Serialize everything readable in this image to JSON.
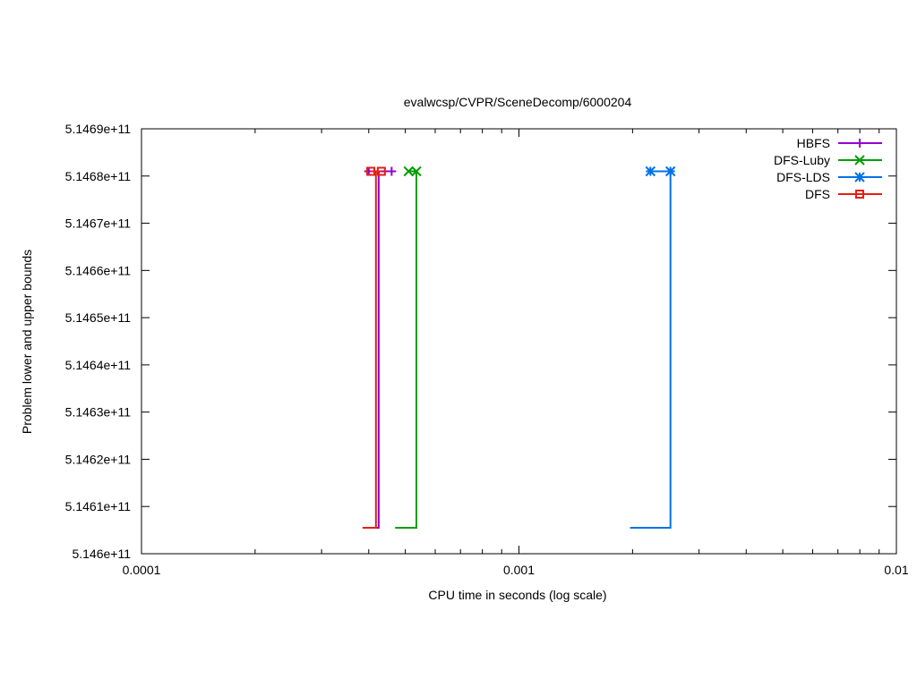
{
  "chart_data": {
    "type": "line",
    "title": "evalwcsp/CVPR/SceneDecomp/6000204",
    "xlabel": "CPU time in seconds (log scale)",
    "ylabel": "Problem lower and upper bounds",
    "x_scale": "log",
    "xlim": [
      0.0001,
      0.01
    ],
    "ylim": [
      514600000000,
      514690000000
    ],
    "x_ticks": [
      {
        "value": 0.0001,
        "label": "0.0001"
      },
      {
        "value": 0.001,
        "label": "0.001"
      },
      {
        "value": 0.01,
        "label": "0.01"
      }
    ],
    "y_ticks": [
      {
        "value": 514600000000,
        "label": "5.146e+11"
      },
      {
        "value": 514610000000,
        "label": "5.1461e+11"
      },
      {
        "value": 514620000000,
        "label": "5.1462e+11"
      },
      {
        "value": 514630000000,
        "label": "5.1463e+11"
      },
      {
        "value": 514640000000,
        "label": "5.1464e+11"
      },
      {
        "value": 514650000000,
        "label": "5.1465e+11"
      },
      {
        "value": 514660000000,
        "label": "5.1466e+11"
      },
      {
        "value": 514670000000,
        "label": "5.1467e+11"
      },
      {
        "value": 514680000000,
        "label": "5.1468e+11"
      },
      {
        "value": 514690000000,
        "label": "5.1469e+11"
      }
    ],
    "grid": false,
    "legend_position": "top-right",
    "series": [
      {
        "name": "HBFS",
        "color": "#9400d3",
        "marker": "plus",
        "upper": [
          [
            0.0004,
            514681000000
          ],
          [
            0.00046,
            514681000000
          ]
        ],
        "lower": [
          [
            0.0004,
            514605500000
          ],
          [
            0.000425,
            514605500000
          ],
          [
            0.000425,
            514681000000
          ]
        ]
      },
      {
        "name": "DFS-Luby",
        "color": "#009e00",
        "marker": "x",
        "upper": [
          [
            0.00051,
            514681000000
          ],
          [
            0.000535,
            514681000000
          ]
        ],
        "lower": [
          [
            0.00047,
            514605500000
          ],
          [
            0.000535,
            514605500000
          ],
          [
            0.000535,
            514681000000
          ]
        ]
      },
      {
        "name": "DFS-LDS",
        "color": "#0072e6",
        "marker": "star",
        "upper": [
          [
            0.00223,
            514681000000
          ],
          [
            0.00252,
            514681000000
          ]
        ],
        "lower": [
          [
            0.00197,
            514605500000
          ],
          [
            0.00252,
            514605500000
          ],
          [
            0.00252,
            514681000000
          ]
        ]
      },
      {
        "name": "DFS",
        "color": "#e51e10",
        "marker": "square",
        "upper": [
          [
            0.000405,
            514681000000
          ],
          [
            0.000432,
            514681000000
          ]
        ],
        "lower": [
          [
            0.000385,
            514605500000
          ],
          [
            0.000418,
            514605500000
          ],
          [
            0.000418,
            514681000000
          ]
        ]
      }
    ]
  }
}
